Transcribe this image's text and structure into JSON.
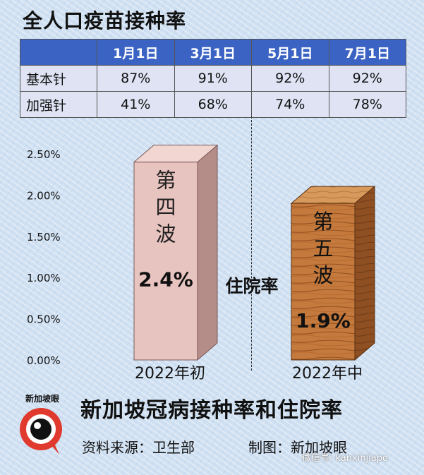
{
  "title": "全人口疫苗接种率",
  "table": {
    "columns": [
      "1月1日",
      "3月1日",
      "5月1日",
      "7月1日"
    ],
    "rows": [
      {
        "label": "基本针",
        "values": [
          "87%",
          "91%",
          "92%",
          "92%"
        ]
      },
      {
        "label": "加强针",
        "values": [
          "41%",
          "68%",
          "74%",
          "78%"
        ]
      }
    ]
  },
  "chart_data": {
    "type": "bar",
    "title": "住院率",
    "categories": [
      "2022年初",
      "2022年中"
    ],
    "values": [
      2.4,
      1.9
    ],
    "value_labels": [
      "2.4%",
      "1.9%"
    ],
    "bar_texts": [
      "第四波",
      "第五波"
    ],
    "ylim": [
      0,
      2.5
    ],
    "yticks": [
      "0.00%",
      "0.50%",
      "1.00%",
      "1.50%",
      "2.00%",
      "2.50%"
    ],
    "colors": {
      "bar1": "#e8c4c0",
      "bar2": "#c47a3c"
    }
  },
  "footer": {
    "title": "新加坡冠病接种率和住院率",
    "source_label": "资料来源：",
    "source": "卫生部",
    "made_label": "制图：",
    "made_by": "新加坡眼"
  },
  "logo": {
    "text": "新加坡眼"
  },
  "watermark": "微信号: kanxinjiapo"
}
